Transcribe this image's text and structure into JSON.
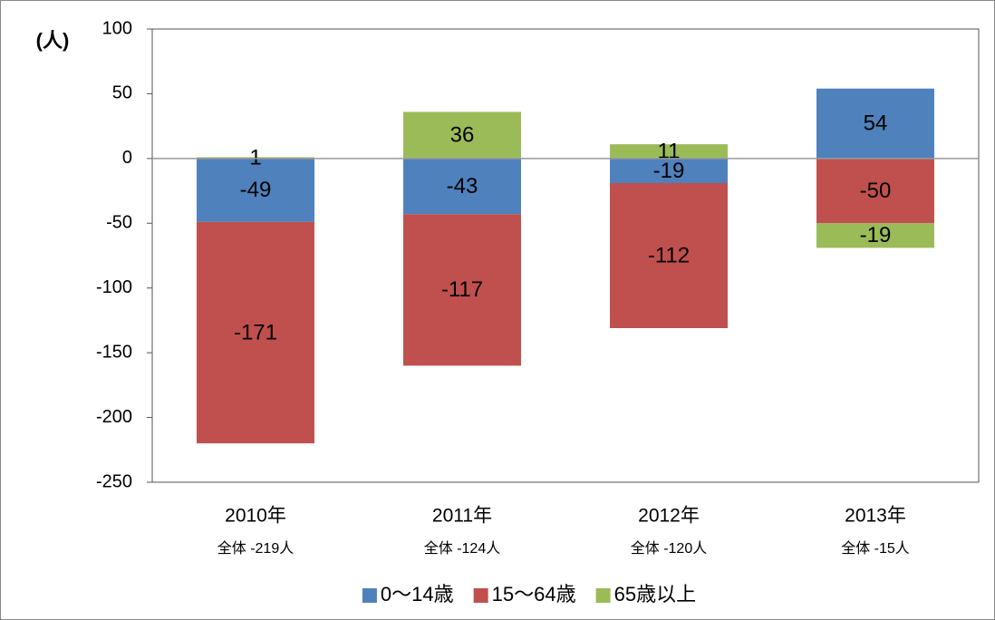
{
  "chart_data": {
    "type": "stacked_bar",
    "y_axis_label": "(人)",
    "categories": [
      "2010年",
      "2011年",
      "2012年",
      "2013年"
    ],
    "category_sublabels": [
      "全体 -219人",
      "全体 -124人",
      "全体 -120人",
      "全体 -15人"
    ],
    "series": [
      {
        "name": "0〜14歳",
        "color": "#4f81bd",
        "values": [
          -49,
          -43,
          -19,
          54
        ]
      },
      {
        "name": "15〜64歳",
        "color": "#c0504d",
        "values": [
          -171,
          -117,
          -112,
          -50
        ]
      },
      {
        "name": "65歳以上",
        "color": "#9bbb59",
        "values": [
          1,
          36,
          11,
          -19
        ]
      }
    ],
    "ylim": [
      -250,
      100
    ],
    "yticks": [
      -250,
      -200,
      -150,
      -100,
      -50,
      0,
      50,
      100
    ],
    "legend": "bottom"
  }
}
